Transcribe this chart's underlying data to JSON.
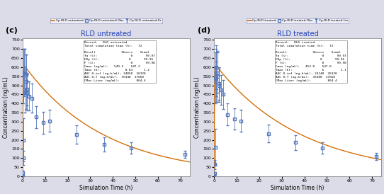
{
  "panel_c": {
    "title": "RLD untreated",
    "label": "(c)",
    "legend_items": [
      "Cp RLD untreated",
      "Cp RLD untreated Obs",
      "Cp RLD untreated Er"
    ],
    "sim_curve_color": "#D4700A",
    "obs_color": "#5577BB",
    "ka": 6.0,
    "ke": 0.028,
    "C0": 620,
    "obs_times": [
      0.5,
      1.0,
      1.5,
      2.0,
      3.0,
      4.0,
      6.0,
      9.0,
      12.0,
      24.0,
      36.0,
      48.0,
      72.0
    ],
    "obs_vals": [
      200,
      460,
      520,
      460,
      440,
      430,
      325,
      295,
      305,
      230,
      175,
      155,
      120
    ],
    "obs_err": [
      120,
      110,
      150,
      100,
      80,
      80,
      60,
      60,
      60,
      50,
      40,
      30,
      20
    ],
    "early_obs_times": [
      0.08,
      0.17,
      0.33,
      0.5,
      0.75,
      1.0,
      1.5,
      2.0
    ],
    "early_obs_vals": [
      5,
      20,
      100,
      550,
      570,
      580,
      560,
      480
    ],
    "early_obs_err": [
      3,
      10,
      40,
      150,
      130,
      120,
      110,
      90
    ],
    "text_box": "Record:   RLD untreated\nTotal simulation time (h):   72\n\nResult              Observ    Simul\nfa (%):                  0       99.97\nFDp (%):                0       99.96\nF (%):                   0       99.98\nCmax (ng/mL):   549.5    547.2\nTmax (h):             0.83      1.2\nAUC 0-inf (ng-h/mL): 24850  26320\nAUC 0-T (ng-h/mL):  35340  37660\nCMax Liver (ng/mL):         864.4"
  },
  "panel_d": {
    "title": "RLD treated",
    "label": "(d)",
    "legend_items": [
      "Cp-RLD treated",
      "Cp-RLD treated Obs",
      "Cp-RLD treated Lin"
    ],
    "sim_curve_color": "#D4700A",
    "obs_color": "#5577BB",
    "ka": 5.5,
    "ke": 0.026,
    "C0": 620,
    "obs_times": [
      0.5,
      1.0,
      1.5,
      2.0,
      3.0,
      4.0,
      6.0,
      9.0,
      12.0,
      24.0,
      36.0,
      48.0,
      72.0
    ],
    "obs_vals": [
      160,
      520,
      550,
      510,
      475,
      450,
      340,
      315,
      305,
      235,
      185,
      155,
      110
    ],
    "obs_err": [
      100,
      110,
      140,
      90,
      80,
      80,
      60,
      60,
      60,
      50,
      40,
      30,
      20
    ],
    "early_obs_times": [
      0.08,
      0.17,
      0.33,
      0.5,
      0.75,
      1.0,
      1.5,
      2.0
    ],
    "early_obs_vals": [
      5,
      15,
      65,
      540,
      570,
      600,
      570,
      500
    ],
    "early_obs_err": [
      3,
      8,
      25,
      140,
      130,
      120,
      110,
      90
    ],
    "text_box": "Record:   RLD treated\nTotal simulation time (h):   72\n\nResult              Observ    Simul\nfa (%):                  0       99.97\nFDp (%):                0       99.96\nF (%):                   0       99.98\nCmax (ng/mL):   453.0    547.0\nTmax (h):                6         1.1\nAUC 0-inf (ng-h/mL): 24140  26320\nAUC 0-T (ng-h/mL):  35380  37660\nCMax Liver (ng/mL):         864.4"
  },
  "xlim": [
    0,
    74
  ],
  "ylim": [
    0,
    760
  ],
  "ytick_step": 50,
  "xticks": [
    0,
    10,
    20,
    30,
    40,
    50,
    60,
    70
  ],
  "xlabel": "Simulation Time (h)",
  "ylabel": "Concentration (ng/mL)",
  "figure_bg": "#DCDCE8",
  "plot_bg": "#FFFFFF",
  "legend_bg": "#EEEEF8",
  "title_color": "#2244BB"
}
